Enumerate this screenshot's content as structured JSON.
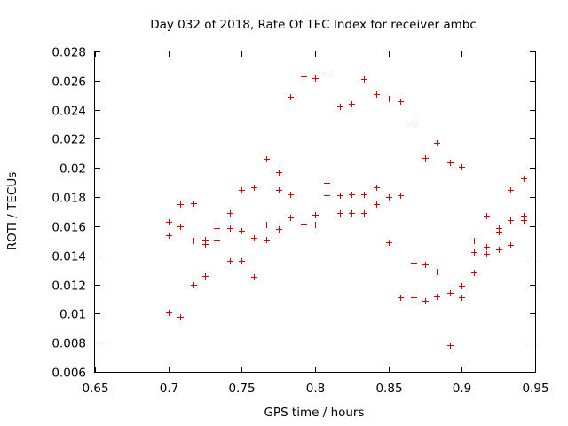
{
  "chart_data": {
    "type": "scatter",
    "title": "Day 032 of 2018, Rate Of TEC Index for receiver ambc",
    "xlabel": "GPS time / hours",
    "ylabel": "ROTI / TECUs",
    "xlim": [
      0.65,
      0.95
    ],
    "ylim": [
      0.006,
      0.028
    ],
    "xticks": [
      0.65,
      0.7,
      0.75,
      0.8,
      0.85,
      0.9,
      0.95
    ],
    "xtick_labels": [
      "0.65",
      "0.7",
      "0.75",
      "0.8",
      "0.85",
      "0.9",
      "0.95"
    ],
    "yticks": [
      0.006,
      0.008,
      0.01,
      0.012,
      0.014,
      0.016,
      0.018,
      0.02,
      0.022,
      0.024,
      0.026,
      0.028
    ],
    "ytick_labels": [
      "0.006",
      "0.008",
      "0.01",
      "0.012",
      "0.014",
      "0.016",
      "0.018",
      "0.02",
      "0.022",
      "0.024",
      "0.026",
      "0.028"
    ],
    "grid": false,
    "marker": "+",
    "marker_color": "#d40000",
    "series": [
      {
        "name": "ROTI",
        "points": [
          [
            0.7,
            0.0163
          ],
          [
            0.7,
            0.0154
          ],
          [
            0.7,
            0.0101
          ],
          [
            0.708,
            0.0175
          ],
          [
            0.708,
            0.016
          ],
          [
            0.708,
            0.0098
          ],
          [
            0.717,
            0.0176
          ],
          [
            0.717,
            0.015
          ],
          [
            0.717,
            0.012
          ],
          [
            0.725,
            0.0151
          ],
          [
            0.725,
            0.0148
          ],
          [
            0.725,
            0.0126
          ],
          [
            0.733,
            0.0159
          ],
          [
            0.733,
            0.0151
          ],
          [
            0.742,
            0.0169
          ],
          [
            0.742,
            0.0159
          ],
          [
            0.742,
            0.0136
          ],
          [
            0.75,
            0.0185
          ],
          [
            0.75,
            0.0157
          ],
          [
            0.75,
            0.0136
          ],
          [
            0.758,
            0.0187
          ],
          [
            0.758,
            0.0152
          ],
          [
            0.758,
            0.0125
          ],
          [
            0.767,
            0.0206
          ],
          [
            0.767,
            0.0161
          ],
          [
            0.767,
            0.0151
          ],
          [
            0.775,
            0.0197
          ],
          [
            0.775,
            0.0185
          ],
          [
            0.775,
            0.0158
          ],
          [
            0.783,
            0.0249
          ],
          [
            0.783,
            0.0182
          ],
          [
            0.783,
            0.0166
          ],
          [
            0.792,
            0.0263
          ],
          [
            0.792,
            0.0162
          ],
          [
            0.8,
            0.0262
          ],
          [
            0.8,
            0.0168
          ],
          [
            0.8,
            0.0161
          ],
          [
            0.808,
            0.0264
          ],
          [
            0.808,
            0.019
          ],
          [
            0.808,
            0.0181
          ],
          [
            0.817,
            0.0242
          ],
          [
            0.817,
            0.0181
          ],
          [
            0.817,
            0.0169
          ],
          [
            0.825,
            0.0244
          ],
          [
            0.825,
            0.0182
          ],
          [
            0.825,
            0.0169
          ],
          [
            0.833,
            0.0261
          ],
          [
            0.833,
            0.0182
          ],
          [
            0.833,
            0.0169
          ],
          [
            0.842,
            0.0251
          ],
          [
            0.842,
            0.0187
          ],
          [
            0.842,
            0.0175
          ],
          [
            0.85,
            0.0248
          ],
          [
            0.85,
            0.018
          ],
          [
            0.85,
            0.0149
          ],
          [
            0.858,
            0.0246
          ],
          [
            0.858,
            0.0181
          ],
          [
            0.858,
            0.0111
          ],
          [
            0.867,
            0.0232
          ],
          [
            0.867,
            0.0135
          ],
          [
            0.867,
            0.0111
          ],
          [
            0.875,
            0.0207
          ],
          [
            0.875,
            0.0134
          ],
          [
            0.875,
            0.0109
          ],
          [
            0.883,
            0.0217
          ],
          [
            0.883,
            0.0129
          ],
          [
            0.883,
            0.0112
          ],
          [
            0.892,
            0.0204
          ],
          [
            0.892,
            0.0114
          ],
          [
            0.892,
            0.0078
          ],
          [
            0.9,
            0.0201
          ],
          [
            0.9,
            0.0119
          ],
          [
            0.9,
            0.0111
          ],
          [
            0.908,
            0.015
          ],
          [
            0.908,
            0.0142
          ],
          [
            0.908,
            0.0128
          ],
          [
            0.917,
            0.0167
          ],
          [
            0.917,
            0.0146
          ],
          [
            0.917,
            0.0141
          ],
          [
            0.925,
            0.0159
          ],
          [
            0.925,
            0.0156
          ],
          [
            0.925,
            0.0144
          ],
          [
            0.933,
            0.0185
          ],
          [
            0.933,
            0.0164
          ],
          [
            0.933,
            0.0147
          ],
          [
            0.942,
            0.0193
          ],
          [
            0.942,
            0.0167
          ],
          [
            0.942,
            0.0164
          ]
        ]
      }
    ]
  }
}
